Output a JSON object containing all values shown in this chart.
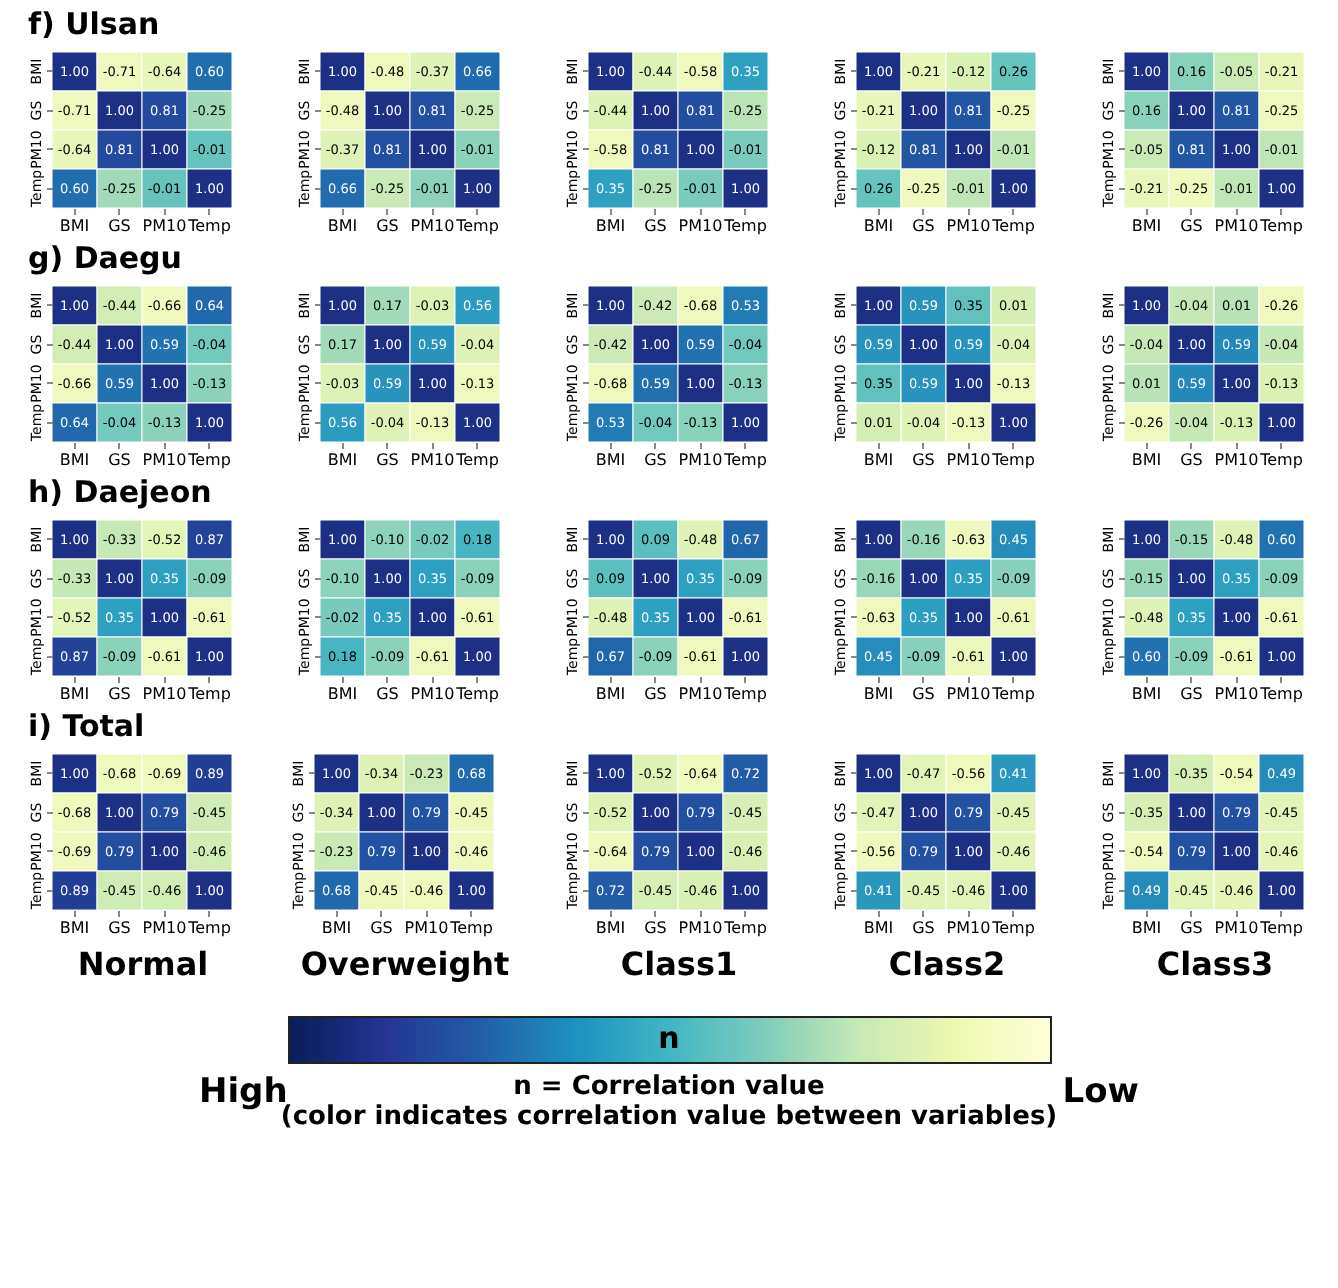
{
  "chart_data": [
    {
      "type": "heatmap",
      "title": "f) Ulsan",
      "categories": [
        "BMI",
        "GS",
        "PM10",
        "Temp"
      ],
      "y_categories": [
        "BMI",
        "GS",
        "PM10",
        "Temp"
      ],
      "cells": [
        [
          1.0,
          -0.71,
          -0.64,
          0.6
        ],
        [
          -0.71,
          1.0,
          0.81,
          -0.25
        ],
        [
          -0.64,
          0.81,
          1.0,
          -0.01
        ],
        [
          0.6,
          -0.25,
          -0.01,
          1.0
        ]
      ],
      "cell_labels": [
        [
          "1.00",
          "-0.71",
          "-0.64",
          "0.60"
        ],
        [
          "-0.71",
          "1.00",
          "0.81",
          "-0.25"
        ],
        [
          "-0.64",
          "0.81",
          "1.00",
          "-0.01"
        ],
        [
          "0.60",
          "-0.25",
          "-0.01",
          "1.00"
        ]
      ]
    },
    {
      "type": "heatmap",
      "categories": [
        "BMI",
        "GS",
        "PM10",
        "Temp"
      ],
      "y_categories": [
        "BMI",
        "GS",
        "PM10",
        "Temp"
      ],
      "cells": [
        [
          1.0,
          -0.48,
          -0.37,
          0.66
        ],
        [
          -0.48,
          1.0,
          0.81,
          -0.25
        ],
        [
          -0.37,
          0.81,
          1.0,
          -0.01
        ],
        [
          0.66,
          -0.25,
          -0.01,
          1.0
        ]
      ],
      "cell_labels": [
        [
          "1.00",
          "-0.48",
          "-0.37",
          "0.66"
        ],
        [
          "-0.48",
          "1.00",
          "0.81",
          "-0.25"
        ],
        [
          "-0.37",
          "0.81",
          "1.00",
          "-0.01"
        ],
        [
          "0.66",
          "-0.25",
          "-0.01",
          "1.00"
        ]
      ]
    },
    {
      "type": "heatmap",
      "categories": [
        "BMI",
        "GS",
        "PM10",
        "Temp"
      ],
      "y_categories": [
        "BMI",
        "GS",
        "PM10",
        "Temp"
      ],
      "cells": [
        [
          1.0,
          -0.44,
          -0.58,
          0.35
        ],
        [
          -0.44,
          1.0,
          0.81,
          -0.25
        ],
        [
          -0.58,
          0.81,
          1.0,
          -0.01
        ],
        [
          0.35,
          -0.25,
          -0.01,
          1.0
        ]
      ],
      "cell_labels": [
        [
          "1.00",
          "-0.44",
          "-0.58",
          "0.35"
        ],
        [
          "-0.44",
          "1.00",
          "0.81",
          "-0.25"
        ],
        [
          "-0.58",
          "0.81",
          "1.00",
          "-0.01"
        ],
        [
          "0.35",
          "-0.25",
          "-0.01",
          "1.00"
        ]
      ]
    },
    {
      "type": "heatmap",
      "categories": [
        "BMI",
        "GS",
        "PM10",
        "Temp"
      ],
      "y_categories": [
        "BMI",
        "GS",
        "PM10",
        "Temp"
      ],
      "cells": [
        [
          1.0,
          -0.21,
          -0.12,
          0.26
        ],
        [
          -0.21,
          1.0,
          0.81,
          -0.25
        ],
        [
          -0.12,
          0.81,
          1.0,
          -0.01
        ],
        [
          0.26,
          -0.25,
          -0.01,
          1.0
        ]
      ],
      "cell_labels": [
        [
          "1.00",
          "-0.21",
          "-0.12",
          "0.26"
        ],
        [
          "-0.21",
          "1.00",
          "0.81",
          "-0.25"
        ],
        [
          "-0.12",
          "0.81",
          "1.00",
          "-0.01"
        ],
        [
          "0.26",
          "-0.25",
          "-0.01",
          "1.00"
        ]
      ]
    },
    {
      "type": "heatmap",
      "categories": [
        "BMI",
        "GS",
        "PM10",
        "Temp"
      ],
      "y_categories": [
        "BMI",
        "GS",
        "PM10",
        "Temp"
      ],
      "cells": [
        [
          1.0,
          0.16,
          -0.05,
          -0.21
        ],
        [
          0.16,
          1.0,
          0.81,
          -0.25
        ],
        [
          -0.05,
          0.81,
          1.0,
          -0.01
        ],
        [
          -0.21,
          -0.25,
          -0.01,
          1.0
        ]
      ],
      "cell_labels": [
        [
          "1.00",
          "0.16",
          "-0.05",
          "-0.21"
        ],
        [
          "0.16",
          "1.00",
          "0.81",
          "-0.25"
        ],
        [
          "-0.05",
          "0.81",
          "1.00",
          "-0.01"
        ],
        [
          "-0.21",
          "-0.25",
          "-0.01",
          "1.00"
        ]
      ]
    },
    {
      "type": "heatmap",
      "title": "g) Daegu",
      "categories": [
        "BMI",
        "GS",
        "PM10",
        "Temp"
      ],
      "y_categories": [
        "BMI",
        "GS",
        "PM10",
        "Temp"
      ],
      "cells": [
        [
          1.0,
          -0.44,
          -0.66,
          0.64
        ],
        [
          -0.44,
          1.0,
          0.59,
          -0.04
        ],
        [
          -0.66,
          0.59,
          1.0,
          -0.13
        ],
        [
          0.64,
          -0.04,
          -0.13,
          1.0
        ]
      ],
      "cell_labels": [
        [
          "1.00",
          "-0.44",
          "-0.66",
          "0.64"
        ],
        [
          "-0.44",
          "1.00",
          "0.59",
          "-0.04"
        ],
        [
          "-0.66",
          "0.59",
          "1.00",
          "-0.13"
        ],
        [
          "0.64",
          "-0.04",
          "-0.13",
          "1.00"
        ]
      ]
    },
    {
      "type": "heatmap",
      "categories": [
        "BMI",
        "GS",
        "PM10",
        "Temp"
      ],
      "y_categories": [
        "BMI",
        "GS",
        "PM10",
        "Temp"
      ],
      "cells": [
        [
          1.0,
          0.17,
          -0.03,
          0.56
        ],
        [
          0.17,
          1.0,
          0.59,
          -0.04
        ],
        [
          -0.03,
          0.59,
          1.0,
          -0.13
        ],
        [
          0.56,
          -0.04,
          -0.13,
          1.0
        ]
      ],
      "cell_labels": [
        [
          "1.00",
          "0.17",
          "-0.03",
          "0.56"
        ],
        [
          "0.17",
          "1.00",
          "0.59",
          "-0.04"
        ],
        [
          "-0.03",
          "0.59",
          "1.00",
          "-0.13"
        ],
        [
          "0.56",
          "-0.04",
          "-0.13",
          "1.00"
        ]
      ]
    },
    {
      "type": "heatmap",
      "categories": [
        "BMI",
        "GS",
        "PM10",
        "Temp"
      ],
      "y_categories": [
        "BMI",
        "GS",
        "PM10",
        "Temp"
      ],
      "cells": [
        [
          1.0,
          -0.42,
          -0.68,
          0.53
        ],
        [
          -0.42,
          1.0,
          0.59,
          -0.04
        ],
        [
          -0.68,
          0.59,
          1.0,
          -0.13
        ],
        [
          0.53,
          -0.04,
          -0.13,
          1.0
        ]
      ],
      "cell_labels": [
        [
          "1.00",
          "-0.42",
          "-0.68",
          "0.53"
        ],
        [
          "-0.42",
          "1.00",
          "0.59",
          "-0.04"
        ],
        [
          "-0.68",
          "0.59",
          "1.00",
          "-0.13"
        ],
        [
          "0.53",
          "-0.04",
          "-0.13",
          "1.00"
        ]
      ]
    },
    {
      "type": "heatmap",
      "categories": [
        "BMI",
        "GS",
        "PM10",
        "Temp"
      ],
      "y_categories": [
        "BMI",
        "GS",
        "PM10",
        "Temp"
      ],
      "cells": [
        [
          1.0,
          0.59,
          0.35,
          0.01
        ],
        [
          0.59,
          1.0,
          0.59,
          -0.04
        ],
        [
          0.35,
          0.59,
          1.0,
          -0.13
        ],
        [
          0.01,
          -0.04,
          -0.13,
          1.0
        ]
      ],
      "cell_labels": [
        [
          "1.00",
          "0.59",
          "0.35",
          "0.01"
        ],
        [
          "0.59",
          "1.00",
          "0.59",
          "-0.04"
        ],
        [
          "0.35",
          "0.59",
          "1.00",
          "-0.13"
        ],
        [
          "0.01",
          "-0.04",
          "-0.13",
          "1.00"
        ]
      ]
    },
    {
      "type": "heatmap",
      "categories": [
        "BMI",
        "GS",
        "PM10",
        "Temp"
      ],
      "y_categories": [
        "BMI",
        "GS",
        "PM10",
        "Temp"
      ],
      "cells": [
        [
          1.0,
          -0.04,
          0.01,
          -0.26
        ],
        [
          -0.04,
          1.0,
          0.59,
          -0.04
        ],
        [
          0.01,
          0.59,
          1.0,
          -0.13
        ],
        [
          -0.26,
          -0.04,
          -0.13,
          1.0
        ]
      ],
      "cell_labels": [
        [
          "1.00",
          "-0.04",
          "0.01",
          "-0.26"
        ],
        [
          "-0.04",
          "1.00",
          "0.59",
          "-0.04"
        ],
        [
          "0.01",
          "0.59",
          "1.00",
          "-0.13"
        ],
        [
          "-0.26",
          "-0.04",
          "-0.13",
          "1.00"
        ]
      ]
    },
    {
      "type": "heatmap",
      "title": "h) Daejeon",
      "categories": [
        "BMI",
        "GS",
        "PM10",
        "Temp"
      ],
      "y_categories": [
        "BMI",
        "GS",
        "PM10",
        "Temp"
      ],
      "cells": [
        [
          1.0,
          -0.33,
          -0.52,
          0.87
        ],
        [
          -0.33,
          1.0,
          0.35,
          -0.09
        ],
        [
          -0.52,
          0.35,
          1.0,
          -0.61
        ],
        [
          0.87,
          -0.09,
          -0.61,
          1.0
        ]
      ],
      "cell_labels": [
        [
          "1.00",
          "-0.33",
          "-0.52",
          "0.87"
        ],
        [
          "-0.33",
          "1.00",
          "0.35",
          "-0.09"
        ],
        [
          "-0.52",
          "0.35",
          "1.00",
          "-0.61"
        ],
        [
          "0.87",
          "-0.09",
          "-0.61",
          "1.00"
        ]
      ]
    },
    {
      "type": "heatmap",
      "categories": [
        "BMI",
        "GS",
        "PM10",
        "Temp"
      ],
      "y_categories": [
        "BMI",
        "GS",
        "PM10",
        "Temp"
      ],
      "cells": [
        [
          1.0,
          -0.1,
          -0.02,
          0.18
        ],
        [
          -0.1,
          1.0,
          0.35,
          -0.09
        ],
        [
          -0.02,
          0.35,
          1.0,
          -0.61
        ],
        [
          0.18,
          -0.09,
          -0.61,
          1.0
        ]
      ],
      "cell_labels": [
        [
          "1.00",
          "-0.10",
          "-0.02",
          "0.18"
        ],
        [
          "-0.10",
          "1.00",
          "0.35",
          "-0.09"
        ],
        [
          "-0.02",
          "0.35",
          "1.00",
          "-0.61"
        ],
        [
          "0.18",
          "-0.09",
          "-0.61",
          "1.00"
        ]
      ]
    },
    {
      "type": "heatmap",
      "categories": [
        "BMI",
        "GS",
        "PM10",
        "Temp"
      ],
      "y_categories": [
        "BMI",
        "GS",
        "PM10",
        "Temp"
      ],
      "cells": [
        [
          1.0,
          0.09,
          -0.48,
          0.67
        ],
        [
          0.09,
          1.0,
          0.35,
          -0.09
        ],
        [
          -0.48,
          0.35,
          1.0,
          -0.61
        ],
        [
          0.67,
          -0.09,
          -0.61,
          1.0
        ]
      ],
      "cell_labels": [
        [
          "1.00",
          "0.09",
          "-0.48",
          "0.67"
        ],
        [
          "0.09",
          "1.00",
          "0.35",
          "-0.09"
        ],
        [
          "-0.48",
          "0.35",
          "1.00",
          "-0.61"
        ],
        [
          "0.67",
          "-0.09",
          "-0.61",
          "1.00"
        ]
      ]
    },
    {
      "type": "heatmap",
      "categories": [
        "BMI",
        "GS",
        "PM10",
        "Temp"
      ],
      "y_categories": [
        "BMI",
        "GS",
        "PM10",
        "Temp"
      ],
      "cells": [
        [
          1.0,
          -0.16,
          -0.63,
          0.45
        ],
        [
          -0.16,
          1.0,
          0.35,
          -0.09
        ],
        [
          -0.63,
          0.35,
          1.0,
          -0.61
        ],
        [
          0.45,
          -0.09,
          -0.61,
          1.0
        ]
      ],
      "cell_labels": [
        [
          "1.00",
          "-0.16",
          "-0.63",
          "0.45"
        ],
        [
          "-0.16",
          "1.00",
          "0.35",
          "-0.09"
        ],
        [
          "-0.63",
          "0.35",
          "1.00",
          "-0.61"
        ],
        [
          "0.45",
          "-0.09",
          "-0.61",
          "1.00"
        ]
      ]
    },
    {
      "type": "heatmap",
      "categories": [
        "BMI",
        "GS",
        "PM10",
        "Temp"
      ],
      "y_categories": [
        "BMI",
        "GS",
        "PM10",
        "Temp"
      ],
      "cells": [
        [
          1.0,
          -0.15,
          -0.48,
          0.6
        ],
        [
          -0.15,
          1.0,
          0.35,
          -0.09
        ],
        [
          -0.48,
          0.35,
          1.0,
          -0.61
        ],
        [
          0.6,
          -0.09,
          -0.61,
          1.0
        ]
      ],
      "cell_labels": [
        [
          "1.00",
          "-0.15",
          "-0.48",
          "0.60"
        ],
        [
          "-0.15",
          "1.00",
          "0.35",
          "-0.09"
        ],
        [
          "-0.48",
          "0.35",
          "1.00",
          "-0.61"
        ],
        [
          "0.60",
          "-0.09",
          "-0.61",
          "1.00"
        ]
      ]
    },
    {
      "type": "heatmap",
      "title": "i) Total",
      "xlabel": "Normal",
      "categories": [
        "BMI",
        "GS",
        "PM10",
        "Temp"
      ],
      "y_categories": [
        "BMI",
        "GS",
        "PM10",
        "Temp"
      ],
      "cells": [
        [
          1.0,
          -0.68,
          -0.69,
          0.89
        ],
        [
          -0.68,
          1.0,
          0.79,
          -0.45
        ],
        [
          -0.69,
          0.79,
          1.0,
          -0.46
        ],
        [
          0.89,
          -0.45,
          -0.46,
          1.0
        ]
      ],
      "cell_labels": [
        [
          "1.00",
          "-0.68",
          "-0.69",
          "0.89"
        ],
        [
          "-0.68",
          "1.00",
          "0.79",
          "-0.45"
        ],
        [
          "-0.69",
          "0.79",
          "1.00",
          "-0.46"
        ],
        [
          "0.89",
          "-0.45",
          "-0.46",
          "1.00"
        ]
      ]
    },
    {
      "type": "heatmap",
      "xlabel": "Overweight",
      "categories": [
        "BMI",
        "GS",
        "PM10",
        "Temp"
      ],
      "y_categories": [
        "BMI",
        "GS",
        "PM10",
        "Temp"
      ],
      "cells": [
        [
          1.0,
          -0.34,
          -0.23,
          0.68
        ],
        [
          -0.34,
          1.0,
          0.79,
          -0.45
        ],
        [
          -0.23,
          0.79,
          1.0,
          -0.46
        ],
        [
          0.68,
          -0.45,
          -0.46,
          1.0
        ]
      ],
      "cell_labels": [
        [
          "1.00",
          "-0.34",
          "-0.23",
          "0.68"
        ],
        [
          "-0.34",
          "1.00",
          "0.79",
          "-0.45"
        ],
        [
          "-0.23",
          "0.79",
          "1.00",
          "-0.46"
        ],
        [
          "0.68",
          "-0.45",
          "-0.46",
          "1.00"
        ]
      ]
    },
    {
      "type": "heatmap",
      "xlabel": "Class1",
      "categories": [
        "BMI",
        "GS",
        "PM10",
        "Temp"
      ],
      "y_categories": [
        "BMI",
        "GS",
        "PM10",
        "Temp"
      ],
      "cells": [
        [
          1.0,
          -0.52,
          -0.64,
          0.72
        ],
        [
          -0.52,
          1.0,
          0.79,
          -0.45
        ],
        [
          -0.64,
          0.79,
          1.0,
          -0.46
        ],
        [
          0.72,
          -0.45,
          -0.46,
          1.0
        ]
      ],
      "cell_labels": [
        [
          "1.00",
          "-0.52",
          "-0.64",
          "0.72"
        ],
        [
          "-0.52",
          "1.00",
          "0.79",
          "-0.45"
        ],
        [
          "-0.64",
          "0.79",
          "1.00",
          "-0.46"
        ],
        [
          "0.72",
          "-0.45",
          "-0.46",
          "1.00"
        ]
      ]
    },
    {
      "type": "heatmap",
      "xlabel": "Class2",
      "categories": [
        "BMI",
        "GS",
        "PM10",
        "Temp"
      ],
      "y_categories": [
        "BMI",
        "GS",
        "PM10",
        "Temp"
      ],
      "cells": [
        [
          1.0,
          -0.47,
          -0.56,
          0.41
        ],
        [
          -0.47,
          1.0,
          0.79,
          -0.45
        ],
        [
          -0.56,
          0.79,
          1.0,
          -0.46
        ],
        [
          0.41,
          -0.45,
          -0.46,
          1.0
        ]
      ],
      "cell_labels": [
        [
          "1.00",
          "-0.47",
          "-0.56",
          "0.41"
        ],
        [
          "-0.47",
          "1.00",
          "0.79",
          "-0.45"
        ],
        [
          "-0.56",
          "0.79",
          "1.00",
          "-0.46"
        ],
        [
          "0.41",
          "-0.45",
          "-0.46",
          "1.00"
        ]
      ]
    },
    {
      "type": "heatmap",
      "xlabel": "Class3",
      "categories": [
        "BMI",
        "GS",
        "PM10",
        "Temp"
      ],
      "y_categories": [
        "BMI",
        "GS",
        "PM10",
        "Temp"
      ],
      "cells": [
        [
          1.0,
          -0.35,
          -0.54,
          0.49
        ],
        [
          -0.35,
          1.0,
          0.79,
          -0.45
        ],
        [
          -0.54,
          0.79,
          1.0,
          -0.46
        ],
        [
          0.49,
          -0.45,
          -0.46,
          1.0
        ]
      ],
      "cell_labels": [
        [
          "1.00",
          "-0.35",
          "-0.54",
          "0.49"
        ],
        [
          "-0.35",
          "1.00",
          "0.79",
          "-0.45"
        ],
        [
          "-0.54",
          "0.79",
          "1.00",
          "-0.46"
        ],
        [
          "0.49",
          "-0.45",
          "-0.46",
          "1.00"
        ]
      ]
    },
    {
      "type": "other",
      "clabel": "n = Correlation value",
      "annotations": [
        "n",
        "High",
        "Low",
        "(color indicates correlation value between variables)"
      ]
    }
  ]
}
